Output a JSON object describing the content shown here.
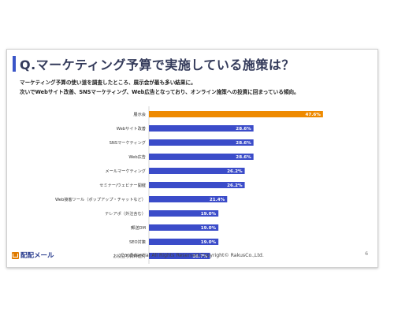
{
  "slide": {
    "title": "Q.マーケティング予算で実施している施策は？",
    "description": [
      "マーケティング予算の使い道を調査したところ、展示会が最も多い結果に。",
      "次いでWebサイト改善、SNSマーケティング、Web広告となっており、オンライン施策への投資に回まっている傾向。"
    ],
    "footer": "Confidential All Rights Reserved.Copyright© RakusCo.,Ltd.",
    "page_number": "6",
    "logo_text": "配配メール"
  },
  "colors": {
    "highlight": "#ee8a00",
    "bar": "#3b4cc9"
  },
  "chart_data": {
    "type": "bar",
    "orientation": "horizontal",
    "categories": [
      "展示会",
      "Webサイト改善",
      "SNSマーケティング",
      "Web広告",
      "メールマーケティング",
      "セミナー/ウェビナー開催",
      "Web接客ツール（ポップアップ・チャットなど）",
      "テレアポ（外注含む）",
      "郵送DM",
      "SEO対策",
      "お役立ち資料送付"
    ],
    "values": [
      47.6,
      28.6,
      28.6,
      28.6,
      26.2,
      26.2,
      21.4,
      19.0,
      19.0,
      19.0,
      16.7
    ],
    "value_labels": [
      "47.6%",
      "28.6%",
      "28.6%",
      "28.6%",
      "26.2%",
      "26.2%",
      "21.4%",
      "19.0%",
      "19.0%",
      "19.0%",
      "16.7%"
    ],
    "highlight_index": 0,
    "xlim": [
      0,
      50
    ],
    "grid": false,
    "legend": "none"
  }
}
